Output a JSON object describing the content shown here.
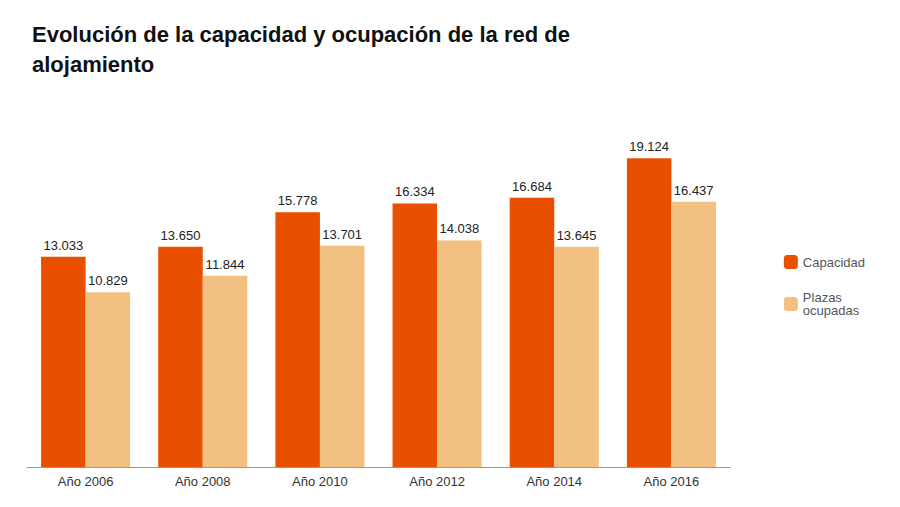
{
  "chart_data": {
    "type": "bar",
    "title": "Evolución de la capacidad y ocupación de la red de\nalojamiento",
    "categories": [
      "Año 2006",
      "Año 2008",
      "Año 2010",
      "Año 2012",
      "Año 2014",
      "Año 2016"
    ],
    "series": [
      {
        "name": "Capacidad",
        "color": "#E85000",
        "values": [
          13033,
          13650,
          15778,
          16334,
          16684,
          19124
        ],
        "value_labels": [
          "13.033",
          "13.650",
          "15.778",
          "16.334",
          "16.684",
          "19.124"
        ]
      },
      {
        "name": "Plazas\nocupadas",
        "color": "#F2C080",
        "values": [
          10829,
          11844,
          13701,
          14038,
          13645,
          16437
        ],
        "value_labels": [
          "10.829",
          "11.844",
          "13.701",
          "14.038",
          "13.645",
          "16.437"
        ]
      }
    ],
    "ylim": [
      0,
      21500
    ],
    "grid": false,
    "legend": "right",
    "data_labels": true,
    "tick_labels": "x"
  }
}
